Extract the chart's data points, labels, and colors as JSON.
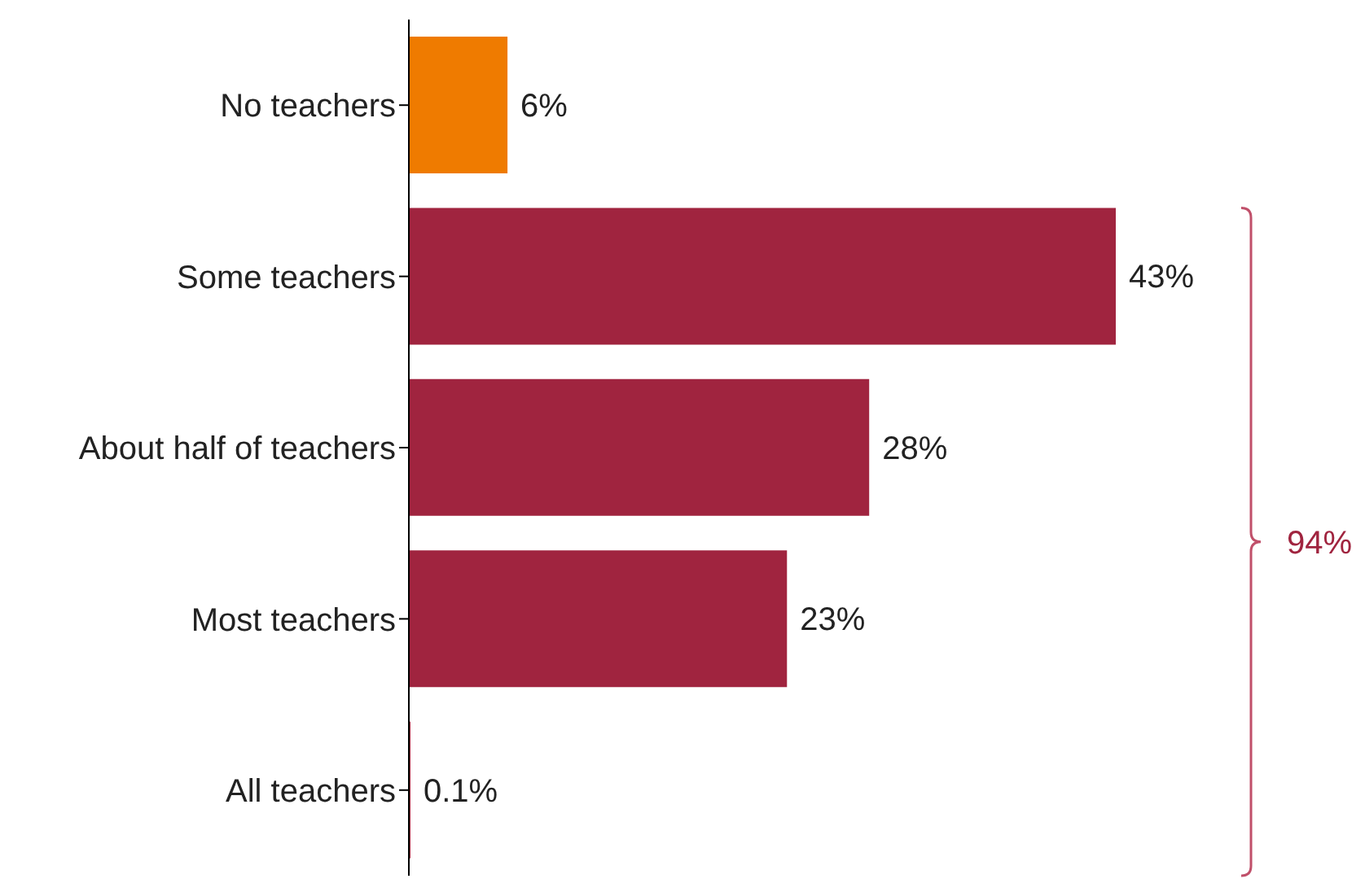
{
  "chart_data": {
    "type": "bar",
    "orientation": "horizontal",
    "categories": [
      "No teachers",
      "Some teachers",
      "About half of teachers",
      "Most teachers",
      "All teachers"
    ],
    "values": [
      6,
      43,
      28,
      23,
      0.1
    ],
    "colors": [
      "#ef7b00",
      "#a0243f",
      "#a0243f",
      "#a0243f",
      "#a0243f"
    ],
    "value_labels": [
      "6%",
      "43%",
      "28%",
      "23%",
      "0.1%"
    ],
    "annotations": [
      "94%"
    ]
  }
}
